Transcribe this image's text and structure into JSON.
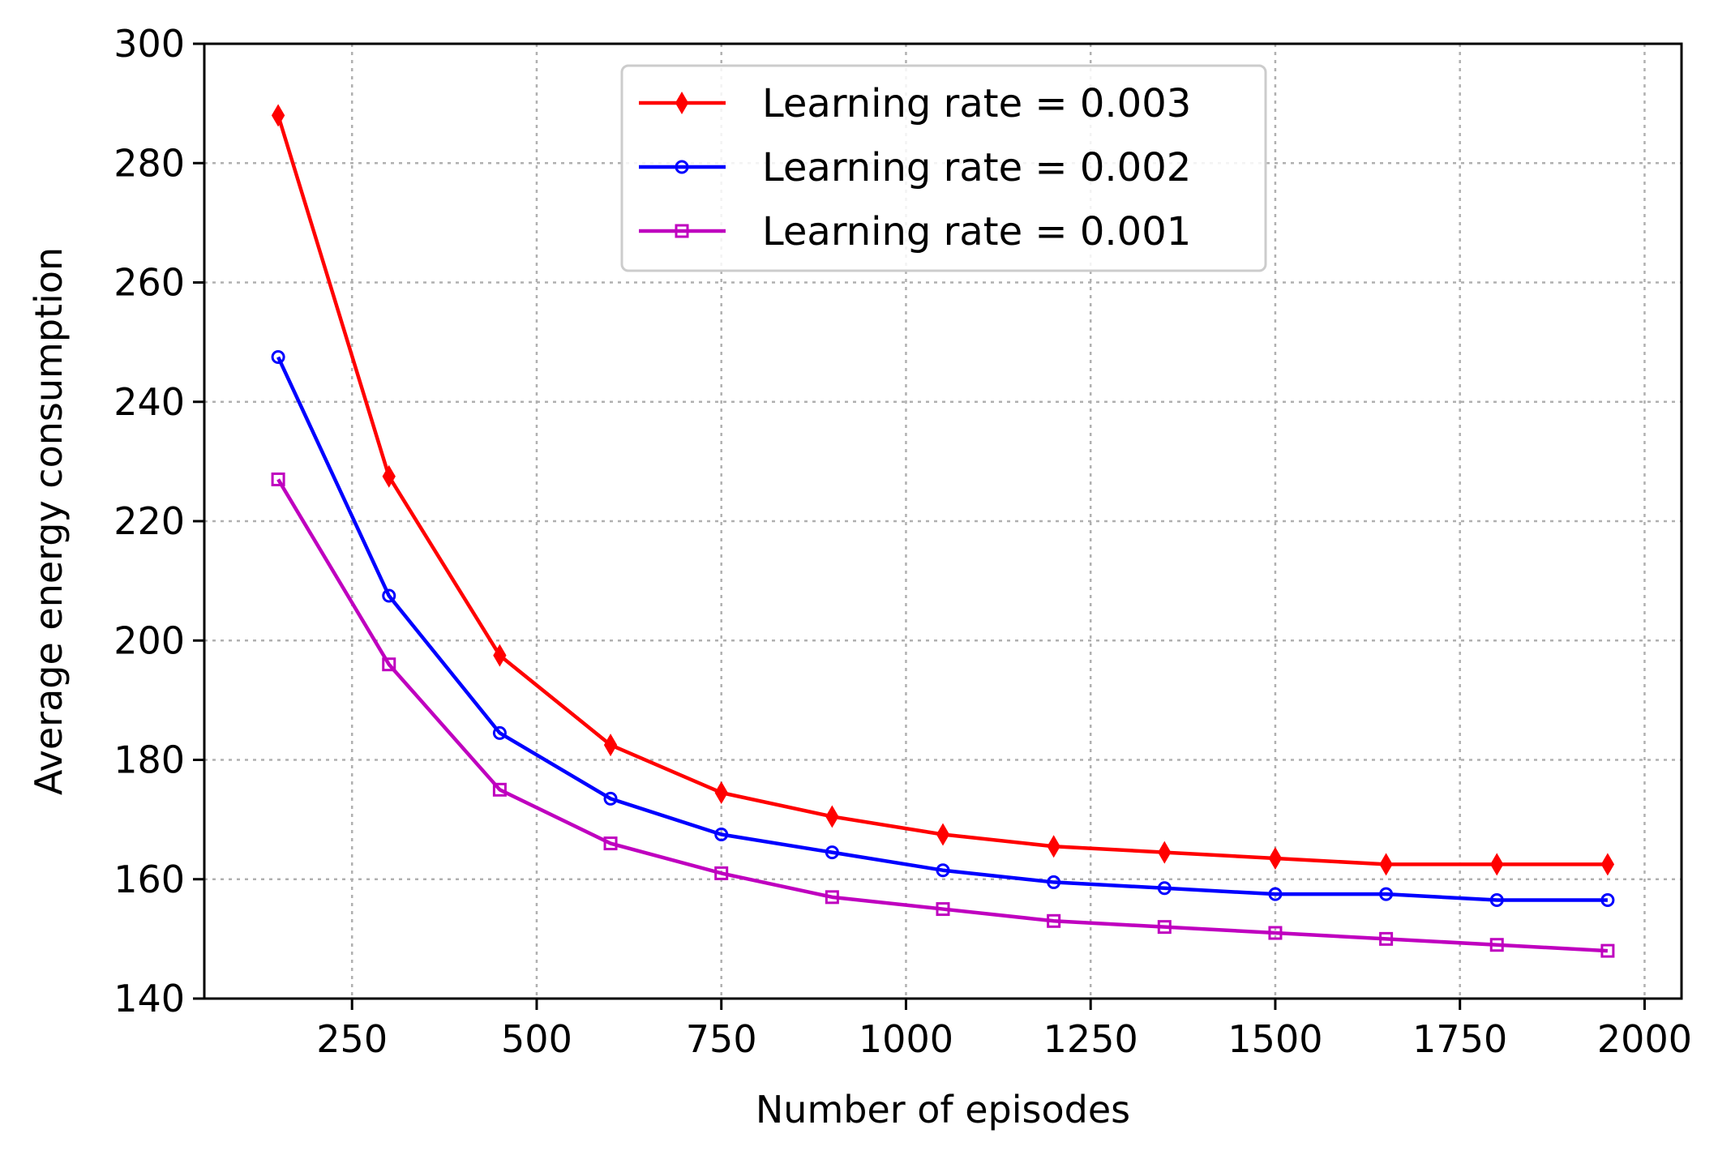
{
  "chart_data": {
    "type": "line",
    "title": "",
    "xlabel": "Number of episodes",
    "ylabel": "Average energy consumption",
    "xlim": [
      50,
      2050
    ],
    "ylim": [
      140,
      300
    ],
    "xticks": [
      250,
      500,
      750,
      1000,
      1250,
      1500,
      1750,
      2000
    ],
    "yticks": [
      140,
      160,
      180,
      200,
      220,
      240,
      260,
      280,
      300
    ],
    "grid": true,
    "legend_position": "upper-center",
    "x": [
      150,
      300,
      450,
      600,
      750,
      900,
      1050,
      1200,
      1350,
      1500,
      1650,
      1800,
      1950
    ],
    "series": [
      {
        "name": "Learning rate = 0.003",
        "color": "#ff0000",
        "marker": "thin-diamond",
        "values": [
          288,
          227.5,
          197.5,
          182.5,
          174.5,
          170.5,
          167.5,
          165.5,
          164.5,
          163.5,
          162.5,
          162.5,
          162.5
        ]
      },
      {
        "name": "Learning rate = 0.002",
        "color": "#0000ff",
        "marker": "circle",
        "values": [
          247.5,
          207.5,
          184.5,
          173.5,
          167.5,
          164.5,
          161.5,
          159.5,
          158.5,
          157.5,
          157.5,
          156.5,
          156.5
        ]
      },
      {
        "name": "Learning rate = 0.001",
        "color": "#bf00bf",
        "marker": "square",
        "values": [
          227,
          196,
          175,
          166,
          161,
          157,
          155,
          153,
          152,
          151,
          150,
          149,
          148
        ]
      }
    ]
  }
}
